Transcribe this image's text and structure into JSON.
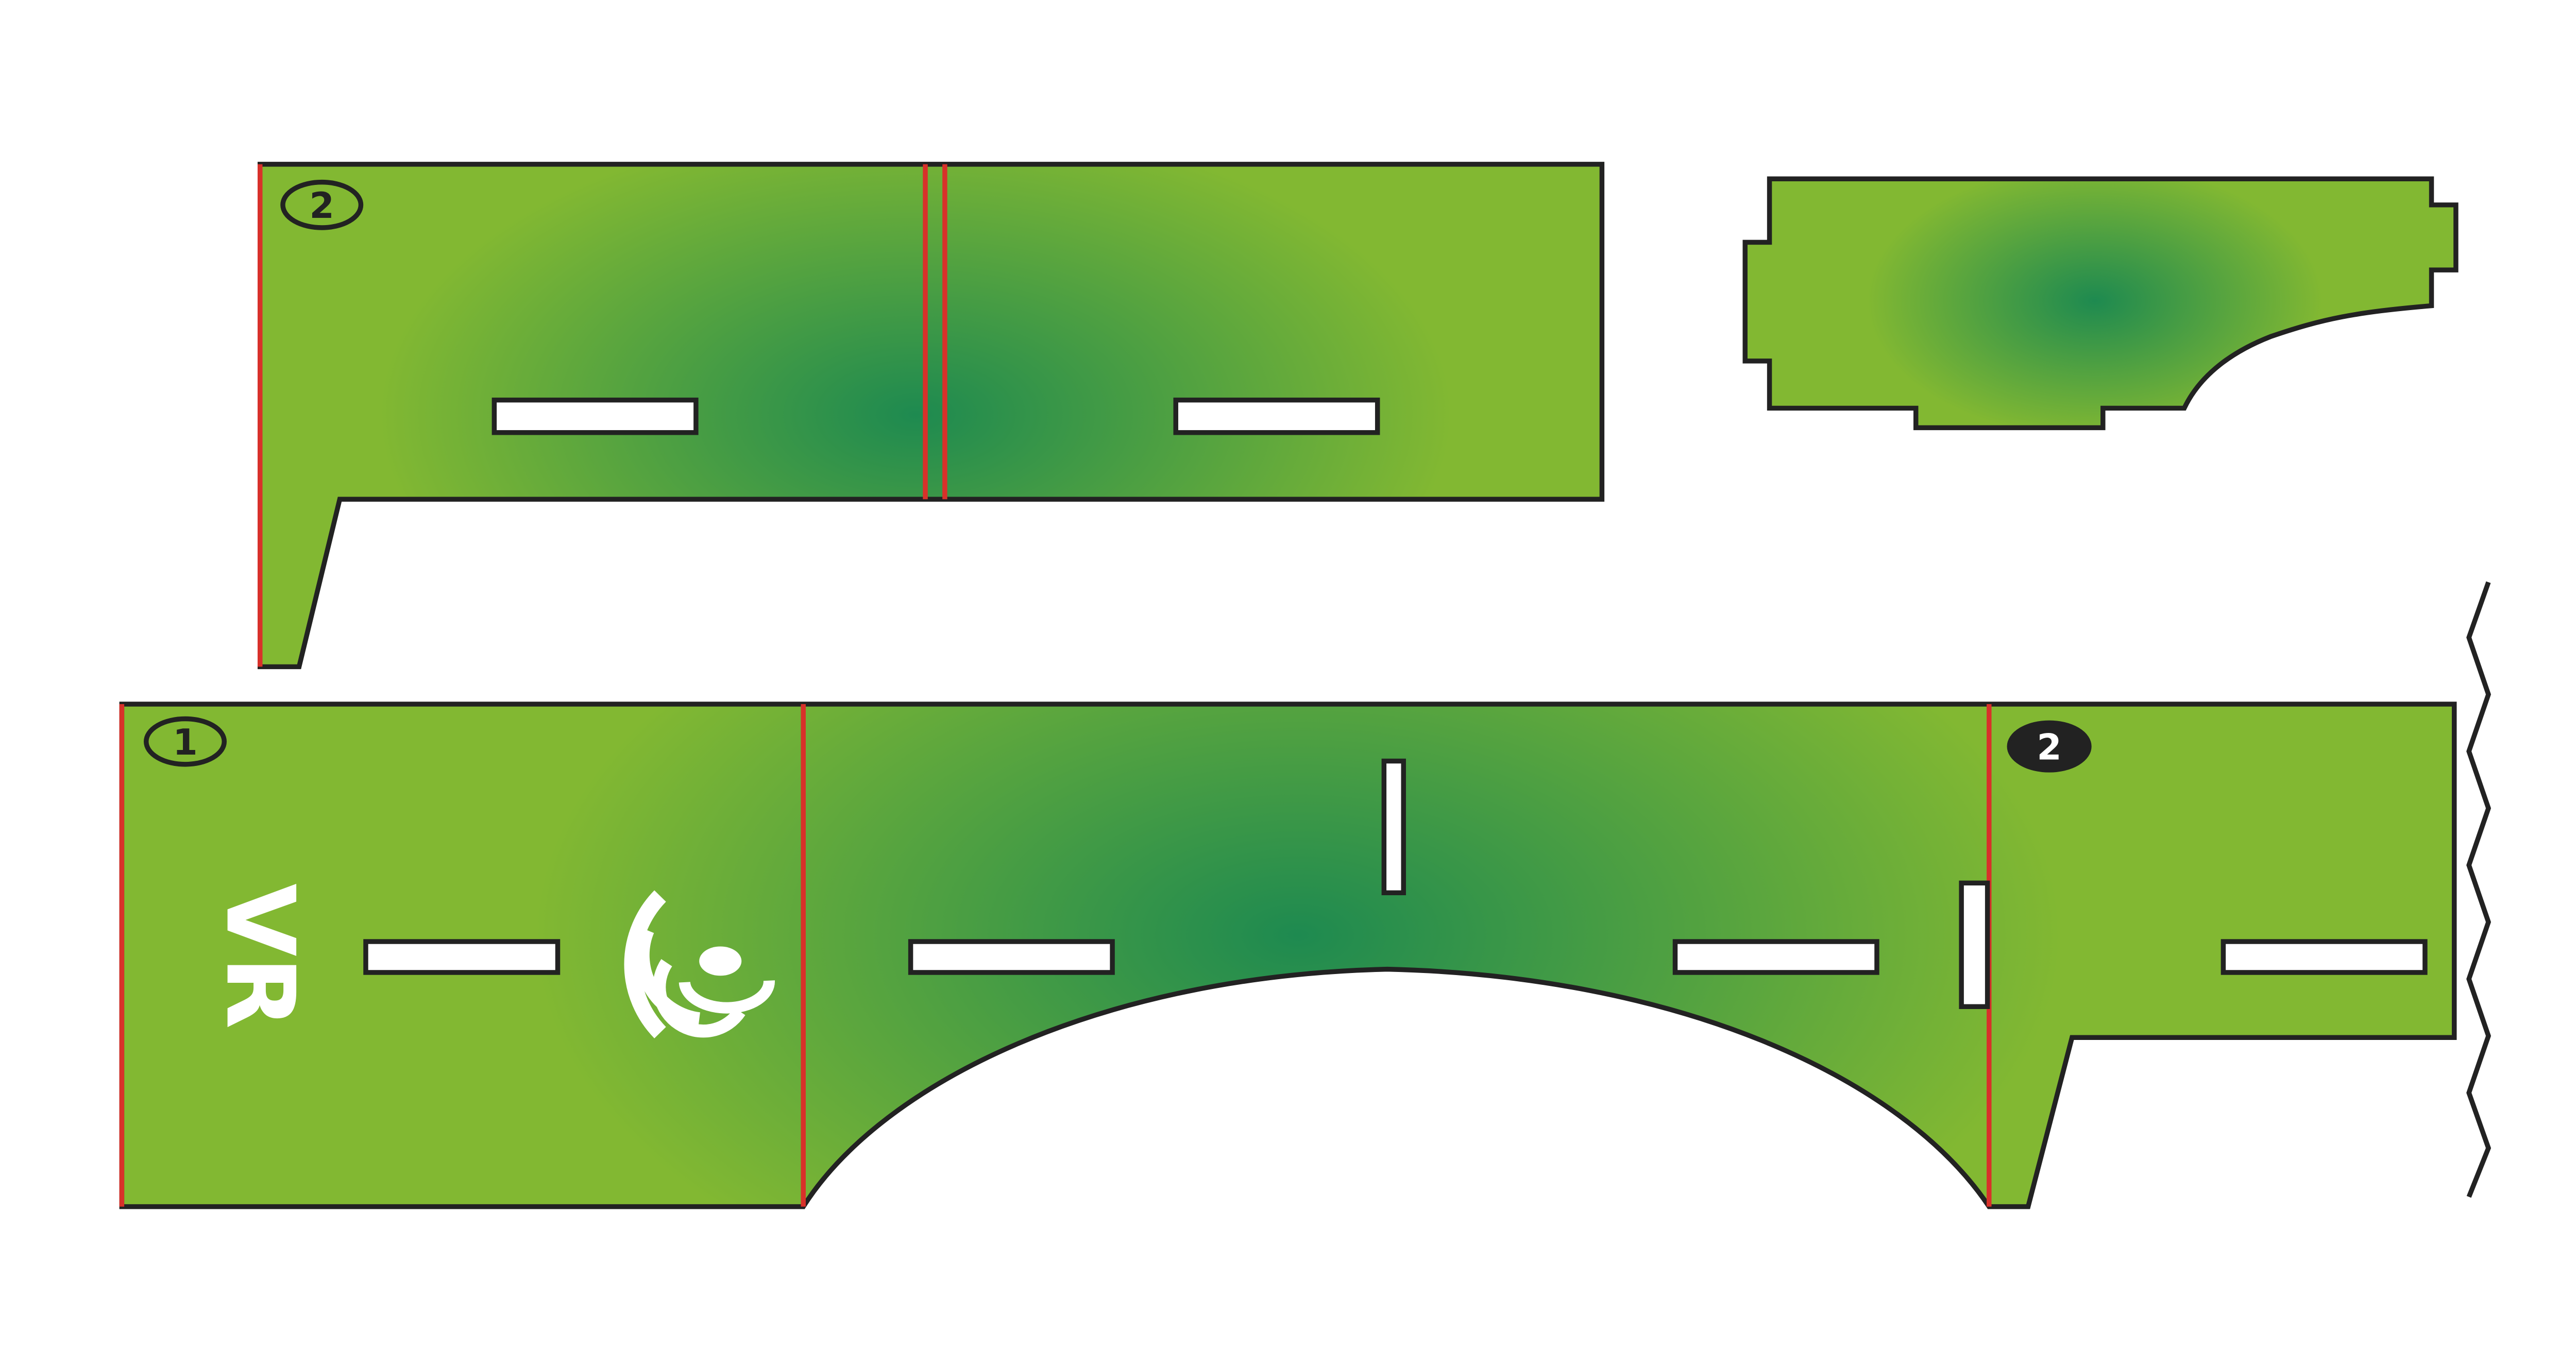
{
  "colors": {
    "panel_fill": "#82b832",
    "panel_center": "#1e8a50",
    "outline": "#222222",
    "fold_line": "#d8312a",
    "slot_fill": "#ffffff",
    "logo_fill": "#ffffff",
    "badge_dark": "#222222"
  },
  "pieces": [
    {
      "name": "top-left-panel",
      "badge": "2",
      "badge_style": "outline",
      "slots": 2,
      "fold_lines": 3
    },
    {
      "name": "top-right-panel",
      "badge": "",
      "slots": 0,
      "fold_lines": 0
    },
    {
      "name": "bottom-strip",
      "badges": [
        "1",
        "2"
      ],
      "badge_styles": [
        "outline",
        "filled"
      ],
      "slots": 6,
      "fold_lines": 3
    }
  ],
  "labels": {
    "badge_top_left": "2",
    "badge_bottom_left": "1",
    "badge_bottom_right": "2",
    "logo_text": "VR"
  },
  "icons": {
    "logo": "vr-eye-logo-icon",
    "cut_edge": "zigzag-cut-icon"
  }
}
